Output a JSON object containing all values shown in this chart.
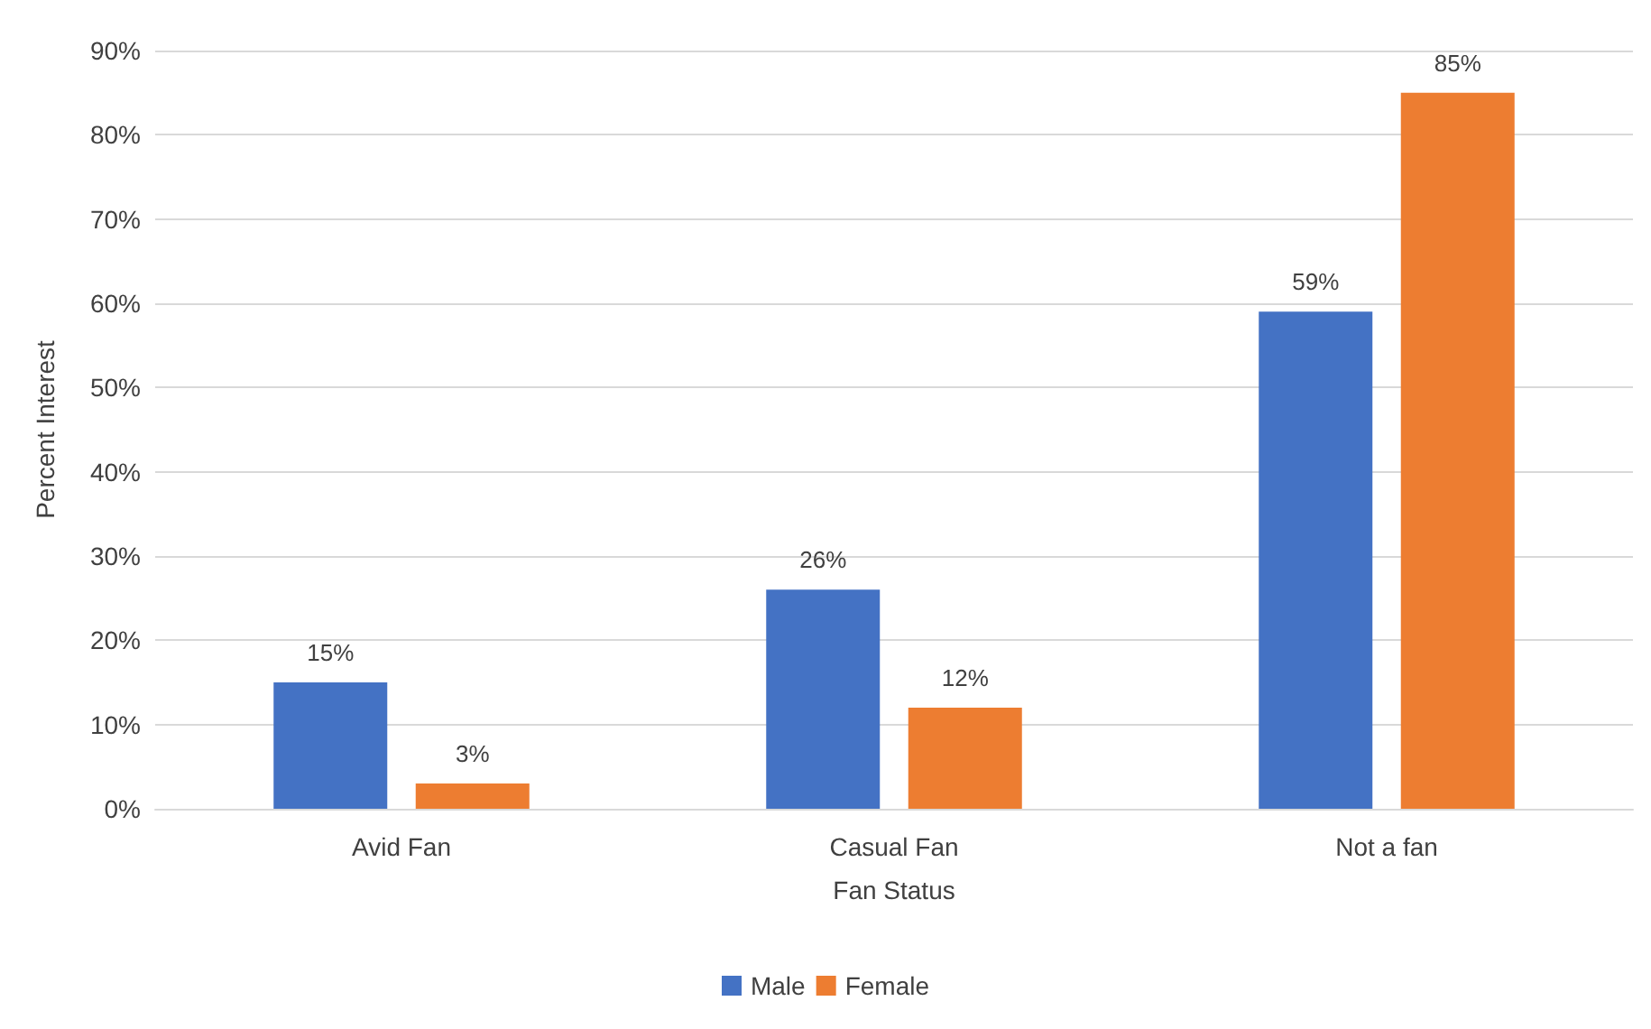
{
  "chart_data": {
    "type": "bar",
    "xlabel": "Fan Status",
    "ylabel": "Percent Interest",
    "categories": [
      "Avid Fan",
      "Casual Fan",
      "Not a fan"
    ],
    "series": [
      {
        "name": "Male",
        "color": "#4472c4",
        "values": [
          15,
          26,
          59
        ],
        "value_labels": [
          "15%",
          "26%",
          "59%"
        ]
      },
      {
        "name": "Female",
        "color": "#ed7d31",
        "values": [
          3,
          12,
          85
        ],
        "value_labels": [
          "3%",
          "12%",
          "85%"
        ]
      }
    ],
    "ylim": [
      0,
      90
    ],
    "yticks": [
      {
        "value": 0,
        "label": "0%"
      },
      {
        "value": 10,
        "label": "10%"
      },
      {
        "value": 20,
        "label": "20%"
      },
      {
        "value": 30,
        "label": "30%"
      },
      {
        "value": 40,
        "label": "40%"
      },
      {
        "value": 50,
        "label": "50%"
      },
      {
        "value": 60,
        "label": "60%"
      },
      {
        "value": 70,
        "label": "70%"
      },
      {
        "value": 80,
        "label": "80%"
      },
      {
        "value": 90,
        "label": "90%"
      }
    ],
    "grid": "y",
    "legend": "bottom"
  }
}
